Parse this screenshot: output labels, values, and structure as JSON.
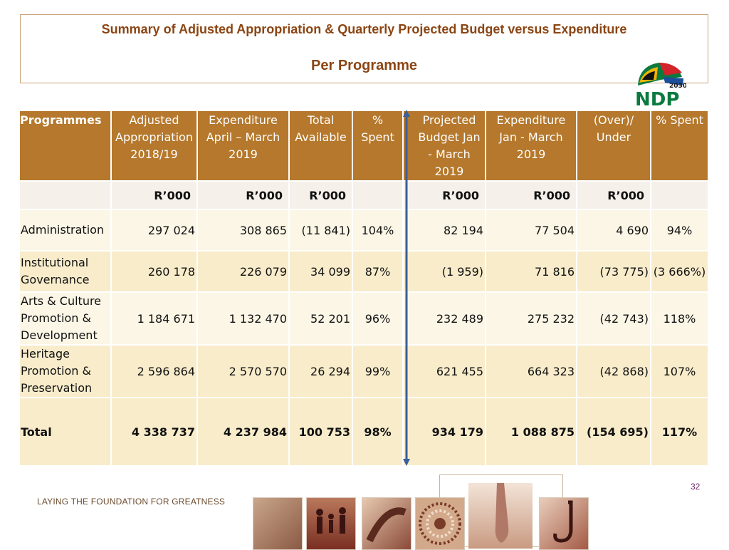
{
  "header": {
    "title": "Summary of Adjusted Appropriation & Quarterly Projected Budget versus Expenditure",
    "subtitle": "Per Programme"
  },
  "logo": {
    "text": "NDP",
    "year": "2030"
  },
  "table": {
    "headers": [
      "Programmes",
      "Adjusted Appropriation 2018/19",
      "Expenditure April – March 2019",
      "Total Available",
      "% Spent",
      "Projected Budget Jan - March 2019",
      "Expenditure Jan - March 2019",
      "(Over)/ Under",
      "% Spent"
    ],
    "units": [
      "",
      "R’000",
      "R’000",
      "R’000",
      "",
      "R’000",
      "R’000",
      "R’000",
      ""
    ],
    "rows": [
      {
        "programme": "Administration",
        "adjusted": "297 024",
        "expenditure": "308 865",
        "available": "(11 841)",
        "spent": "104%",
        "projected": "82 194",
        "exp_q": "77 504",
        "over_under": "4 690",
        "spent_q": "94%"
      },
      {
        "programme": "Institutional Governance",
        "adjusted": "260 178",
        "expenditure": "226 079",
        "available": "34 099",
        "spent": "87%",
        "projected": "(1 959)",
        "exp_q": "71 816",
        "over_under": "(73 775)",
        "spent_q": "(3 666%)"
      },
      {
        "programme": "Arts & Culture Promotion & Development",
        "adjusted": "1 184 671",
        "expenditure": "1 132 470",
        "available": "52 201",
        "spent": "96%",
        "projected": "232 489",
        "exp_q": "275 232",
        "over_under": "(42 743)",
        "spent_q": "118%"
      },
      {
        "programme": "Heritage Promotion & Preservation",
        "adjusted": "2 596 864",
        "expenditure": "2 570 570",
        "available": "26 294",
        "spent": "99%",
        "projected": "621 455",
        "exp_q": "664 323",
        "over_under": "(42 868)",
        "spent_q": "107%"
      }
    ],
    "total": {
      "programme": "Total",
      "adjusted": "4 338 737",
      "expenditure": "4 237 984",
      "available": "100 753",
      "spent": "98%",
      "projected": "934 179",
      "exp_q": "1 088 875",
      "over_under": "(154 695)",
      "spent_q": "117%"
    }
  },
  "footer": {
    "tagline": "LAYING THE FOUNDATION FOR GREATNESS",
    "page_number": "32"
  },
  "colors": {
    "header_bg": "#b5782c",
    "title_text": "#8b4513",
    "row_light": "#fbf6e6",
    "row_dark": "#f8eccb",
    "divider": "#3a5f9a"
  }
}
